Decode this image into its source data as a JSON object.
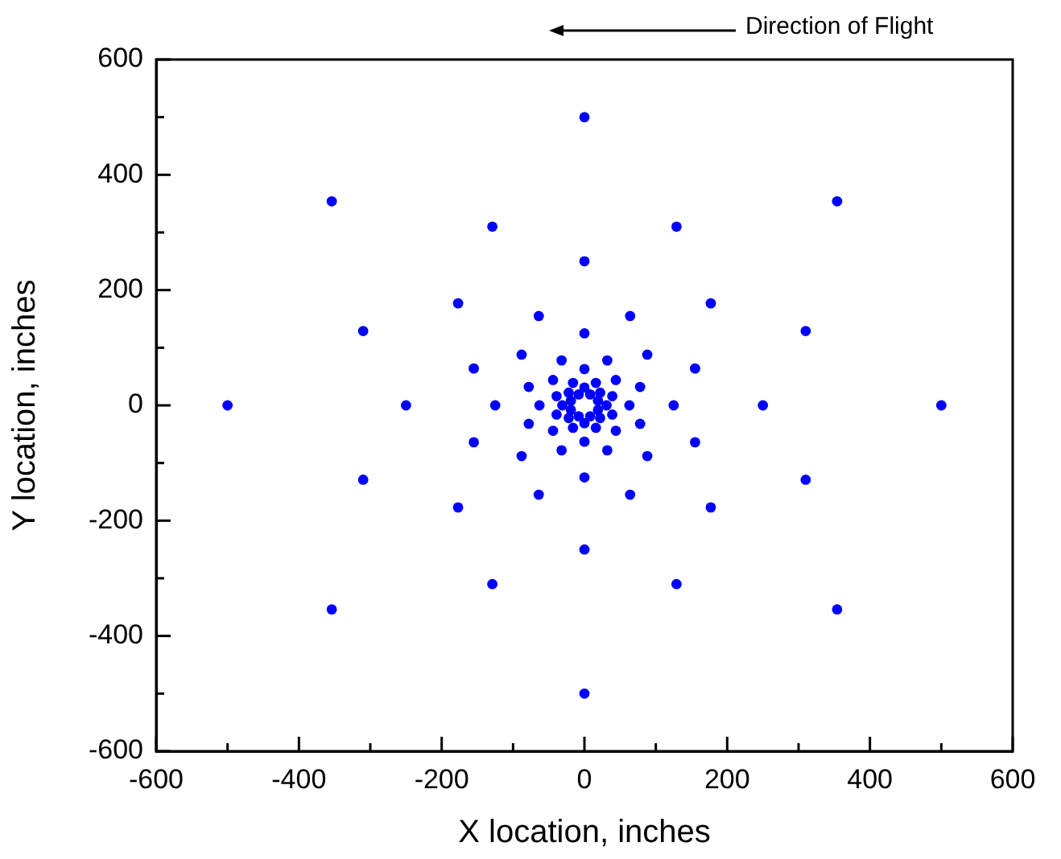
{
  "chart_data": {
    "type": "scatter",
    "xlabel": "X location, inches",
    "ylabel": "Y location, inches",
    "annotations": [
      "Direction of Flight"
    ],
    "xlim": [
      -600,
      600
    ],
    "ylim": [
      -600,
      600
    ],
    "xticks": [
      -600,
      {
        "value": -500,
        "label": null
      },
      -400,
      {
        "value": -300,
        "label": null
      },
      -200,
      {
        "value": -100,
        "label": null
      },
      0,
      {
        "value": 100,
        "label": null
      },
      200,
      {
        "value": 300,
        "label": null
      },
      400,
      {
        "value": 500,
        "label": null
      },
      600
    ],
    "yticks": [
      -600,
      {
        "value": -500,
        "label": null
      },
      -400,
      {
        "value": -300,
        "label": null
      },
      -200,
      {
        "value": -100,
        "label": null
      },
      0,
      {
        "value": 100,
        "label": null
      },
      200,
      {
        "value": 300,
        "label": null
      },
      400,
      {
        "value": 500,
        "label": null
      },
      600
    ],
    "grid": false,
    "legend": false,
    "marker": "circle",
    "series": [
      {
        "color": "#0000ff",
        "x": [
          500,
          354,
          0,
          -354,
          -500,
          -354,
          0,
          354,
          310,
          129,
          -129,
          -310,
          -310,
          -129,
          129,
          310,
          250,
          177,
          0,
          -177,
          -250,
          -177,
          0,
          177,
          155,
          64,
          -64,
          -155,
          -155,
          -64,
          64,
          155,
          125,
          88,
          0,
          -88,
          -125,
          -88,
          0,
          88,
          78,
          32,
          -32,
          -78,
          -78,
          -32,
          32,
          78,
          63,
          44,
          0,
          -44,
          -63,
          -44,
          0,
          44,
          39,
          16,
          -16,
          -39,
          -39,
          -16,
          16,
          39,
          31,
          22,
          0,
          -22,
          -31,
          -22,
          0,
          22,
          19,
          8,
          -8,
          -19,
          -19,
          -8,
          8,
          19
        ],
        "values": [
          0,
          354,
          500,
          354,
          0,
          -354,
          -500,
          -354,
          129,
          310,
          310,
          129,
          -129,
          -310,
          -310,
          -129,
          0,
          177,
          250,
          177,
          0,
          -177,
          -250,
          -177,
          64,
          155,
          155,
          64,
          -64,
          -155,
          -155,
          -64,
          0,
          88,
          125,
          88,
          0,
          -88,
          -125,
          -88,
          32,
          78,
          78,
          32,
          -32,
          -78,
          -78,
          -32,
          0,
          44,
          63,
          44,
          0,
          -44,
          -63,
          -44,
          16,
          39,
          39,
          16,
          -16,
          -39,
          -39,
          -16,
          0,
          22,
          31,
          22,
          0,
          -22,
          -31,
          -22,
          8,
          19,
          19,
          8,
          -8,
          -19,
          -19,
          -8
        ]
      }
    ]
  }
}
